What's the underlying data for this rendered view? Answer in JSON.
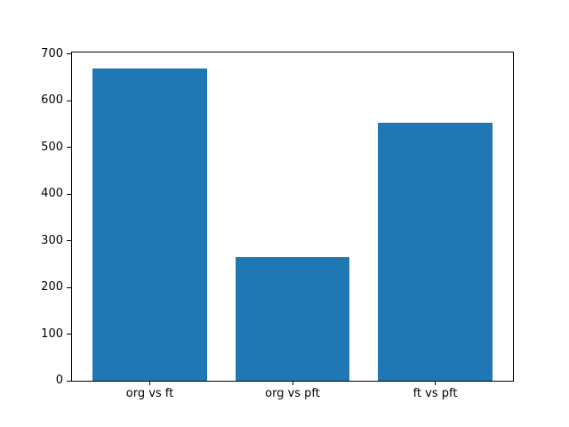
{
  "chart_data": {
    "type": "bar",
    "title": "",
    "xlabel": "",
    "ylabel": "",
    "categories": [
      "org vs ft",
      "org vs pft",
      "ft vs pft"
    ],
    "values": [
      670,
      265,
      553
    ],
    "yticks": [
      0,
      100,
      200,
      300,
      400,
      500,
      600,
      700
    ],
    "ylim": [
      0,
      703.5
    ],
    "xlim": [
      -0.545,
      2.545
    ],
    "bar_width": 0.8,
    "bar_color": "#1f77b4",
    "background": "#ffffff",
    "axis_color": "#000000",
    "text_color": "#000000",
    "grid": false,
    "legend": null
  }
}
